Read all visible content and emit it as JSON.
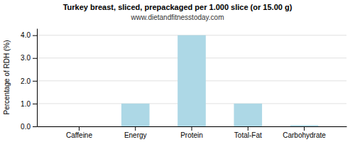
{
  "chart_data": {
    "type": "bar",
    "title": "Turkey breast, sliced, prepackaged per 1.000 slice (or 15.00 g)",
    "subtitle": "www.dietandfitnesstoday.com",
    "categories": [
      "Caffeine",
      "Energy",
      "Protein",
      "Total-Fat",
      "Carbohydrate"
    ],
    "values": [
      0.0,
      1.0,
      4.0,
      1.0,
      0.05
    ],
    "color": "#add8e6",
    "ylabel": "Percentage of RDH (%)",
    "ylim": [
      0,
      4.3
    ],
    "yticks": [
      {
        "value": 0.0,
        "label": "0.0"
      },
      {
        "value": 1.0,
        "label": "1.0"
      },
      {
        "value": 2.0,
        "label": "2.0"
      },
      {
        "value": 3.0,
        "label": "3.0"
      },
      {
        "value": 4.0,
        "label": "4.0"
      }
    ],
    "grid": true
  }
}
